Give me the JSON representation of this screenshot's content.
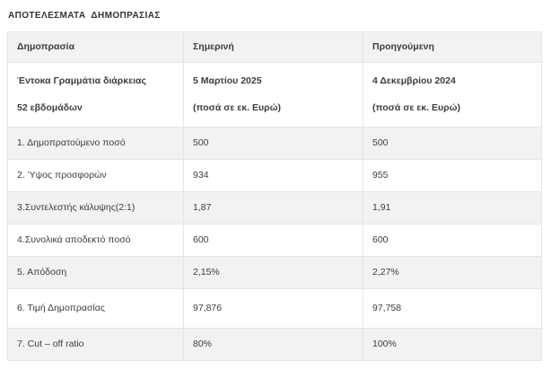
{
  "page": {
    "title": "ΑΠΟΤΕΛΕΣΜΑΤΑ  ΔΗΜΟΠΡΑΣΙΑΣ"
  },
  "table": {
    "columns": [
      "Δημοπρασία",
      "Σημερινή",
      "Προηγούμενη"
    ],
    "subheader": {
      "instrument": [
        "Έντοκα Γραμμάτια διάρκειας",
        "52 εβδομάδων"
      ],
      "current": [
        "5 Μαρτίου 2025",
        "(ποσά σε εκ. Ευρώ)"
      ],
      "previous": [
        "4 Δεκεμβρίου 2024",
        "(ποσά σε εκ. Ευρώ)"
      ]
    },
    "rows": [
      {
        "label": "1. Δημοπρατούμενο ποσό",
        "current": "500",
        "previous": "500"
      },
      {
        "label": "2. Ύψος προσφορών",
        "current": "934",
        "previous": "955"
      },
      {
        "label": "3.Συντελεστής κάλυψης(2:1)",
        "current": "1,87",
        "previous": "1,91"
      },
      {
        "label": "4.Συνολικά αποδεκτό ποσό",
        "current": "600",
        "previous": "600"
      },
      {
        "label": "5. Απόδοση",
        "current": "2,15%",
        "previous": "2,27%"
      },
      {
        "label": "6. Τιμή Δημοπρασίας",
        "current": "97,876",
        "previous": "97,758"
      },
      {
        "label": "7. Cut – off ratio",
        "current": "80%",
        "previous": "100%"
      }
    ]
  },
  "theme": {
    "background_color": "#ffffff",
    "stripe_color": "#f2f2f2",
    "border_color": "#e5e5e5",
    "text_color": "#3d3d3d",
    "title_color": "#333333"
  }
}
